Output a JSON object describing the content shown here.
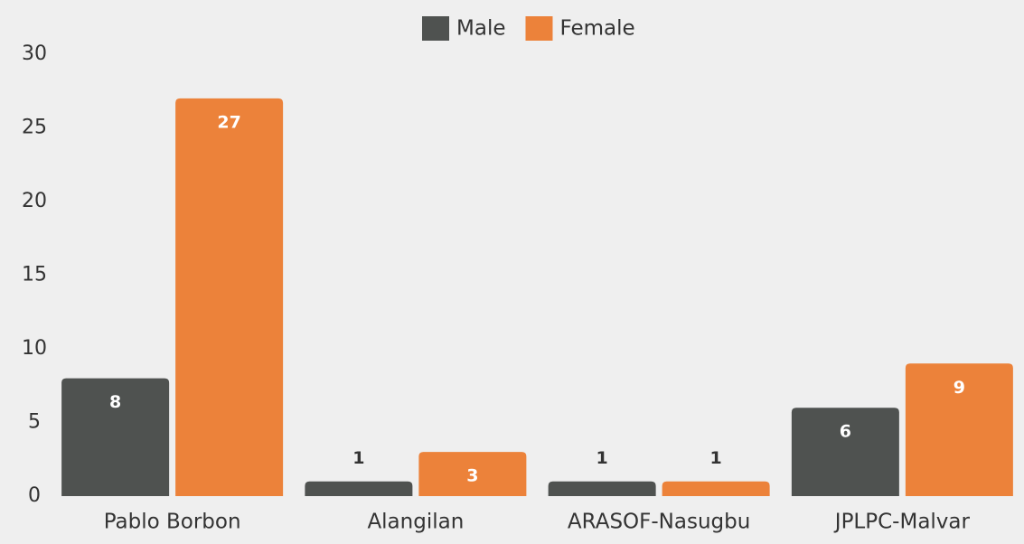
{
  "chart_data": {
    "type": "bar",
    "categories": [
      "Pablo Borbon",
      "Alangilan",
      "ARASOF-Nasugbu",
      "JPLPC-Malvar"
    ],
    "series": [
      {
        "name": "Male",
        "color": "#4f5250",
        "values": [
          8,
          1,
          1,
          6
        ]
      },
      {
        "name": "Female",
        "color": "#ec823a",
        "values": [
          27,
          3,
          1,
          9
        ]
      }
    ],
    "ylim": [
      0,
      30
    ],
    "yticks": [
      0,
      5,
      10,
      15,
      20,
      25,
      30
    ],
    "grid": false,
    "legend": "top"
  }
}
